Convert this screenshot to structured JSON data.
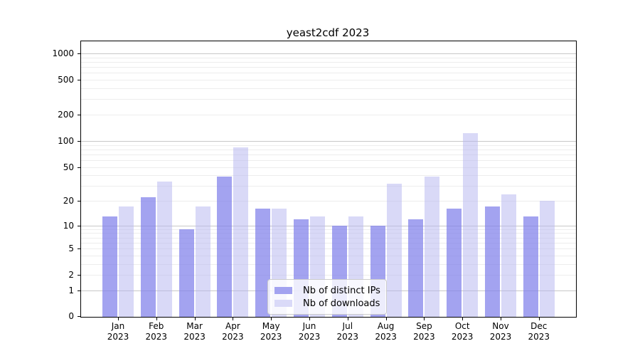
{
  "title": "yeast2cdf 2023",
  "chart_data": {
    "type": "bar",
    "title": "yeast2cdf 2023",
    "categories": [
      "Jan 2023",
      "Feb 2023",
      "Mar 2023",
      "Apr 2023",
      "May 2023",
      "Jun 2023",
      "Jul 2023",
      "Aug 2023",
      "Sep 2023",
      "Oct 2023",
      "Nov 2023",
      "Dec 2023"
    ],
    "series": [
      {
        "name": "Nb of distinct IPs",
        "values": [
          13,
          22,
          9,
          39,
          16,
          12,
          10,
          10,
          12,
          16,
          17,
          13
        ]
      },
      {
        "name": "Nb of downloads",
        "values": [
          17,
          34,
          17,
          85,
          16,
          13,
          13,
          32,
          39,
          124,
          24,
          20
        ]
      }
    ],
    "xlabel": "",
    "ylabel": "",
    "yscale": "log1p",
    "ylim": [
      0,
      1370
    ],
    "yticks": [
      0,
      1,
      2,
      5,
      10,
      20,
      50,
      100,
      200,
      500,
      1000
    ],
    "grid": "horizontal, major at powers of 10 plus minor decade subdivisions",
    "legend_position": "inside lower-center"
  },
  "colors": {
    "distinct_ips_bar": "rgba(127,127,234,0.72)",
    "downloads_bar": "rgba(180,180,240,0.5)",
    "distinct_ips_swatch": "#a3a3f0",
    "downloads_swatch": "#dadaf8",
    "grid_major": "#c8c8c8",
    "grid_minor": "#ededed",
    "axis": "#000000"
  }
}
